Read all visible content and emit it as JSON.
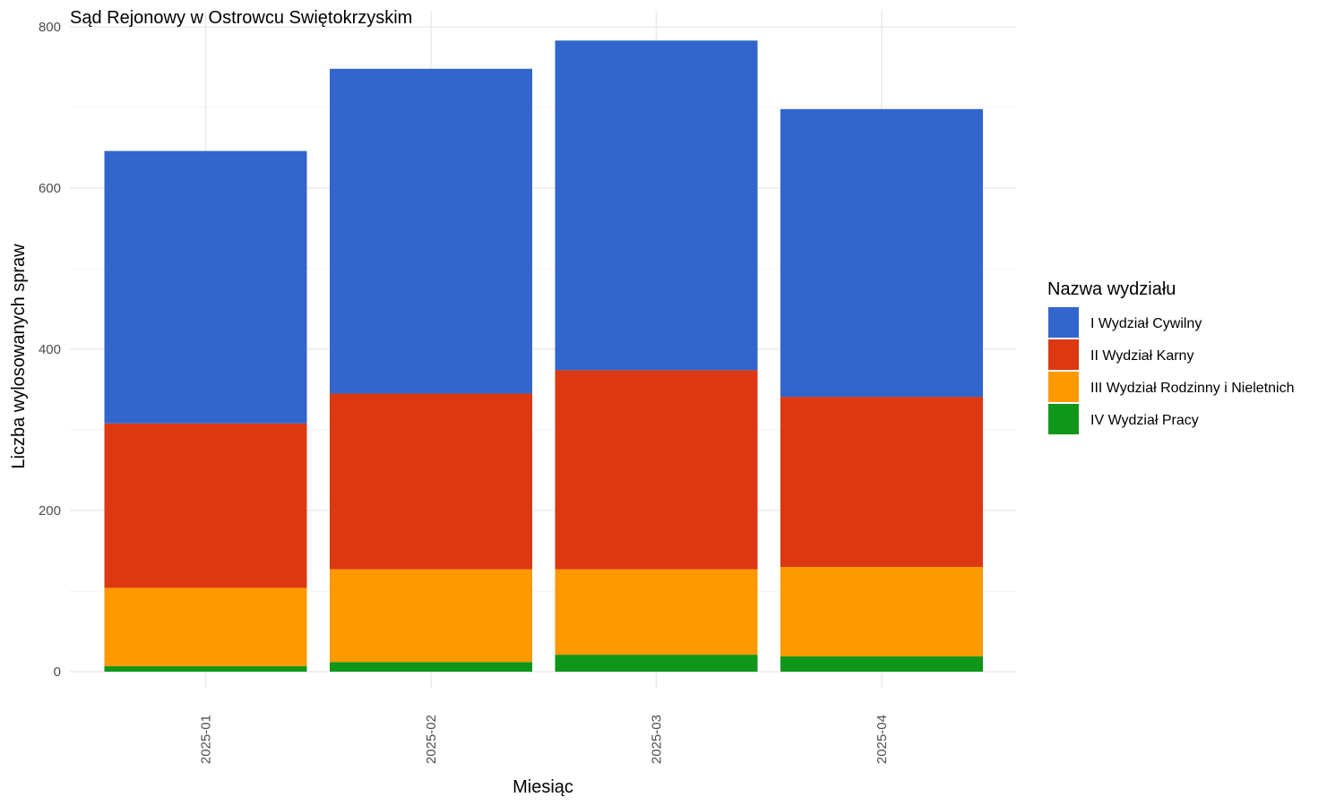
{
  "chart_data": {
    "type": "bar",
    "stacked": true,
    "title": "Sąd Rejonowy w Ostrowcu Swiętokrzyskim",
    "xlabel": "Miesiąc",
    "ylabel": "Liczba wylosowanych spraw",
    "categories": [
      "2025-01",
      "2025-02",
      "2025-03",
      "2025-04"
    ],
    "ylim": [
      0,
      800
    ],
    "yticks": [
      0,
      200,
      400,
      600,
      800
    ],
    "grid": true,
    "legend": {
      "title": "Nazwa wydziału",
      "position": "right"
    },
    "series": [
      {
        "name": "IV Wydział Pracy",
        "color": "#109618",
        "values": [
          7,
          12,
          21,
          19
        ]
      },
      {
        "name": "III Wydział Rodzinny i Nieletnich",
        "color": "#FF9900",
        "values": [
          97,
          115,
          106,
          111
        ]
      },
      {
        "name": "II Wydział Karny",
        "color": "#DC3912",
        "values": [
          204,
          218,
          247,
          211
        ]
      },
      {
        "name": "I Wydział Cywilny",
        "color": "#3366CC",
        "values": [
          338,
          403,
          409,
          357
        ]
      }
    ],
    "legend_order": [
      "I Wydział Cywilny",
      "II Wydział Karny",
      "III Wydział Rodzinny i Nieletnich",
      "IV Wydział Pracy"
    ]
  }
}
